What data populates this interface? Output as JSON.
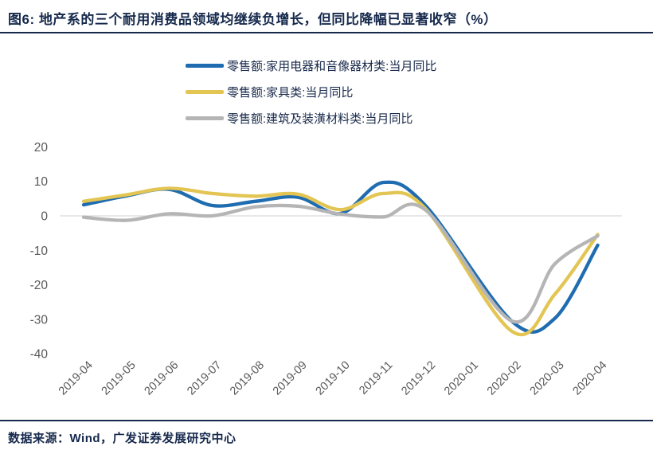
{
  "page": {
    "title": "图6:  地产系的三个耐用消费品领域均继续负增长，但同比降幅已显著收窄（%）",
    "footer": "数据来源：Wind，广发证券发展研究中心"
  },
  "colors": {
    "navy": "#16294C",
    "axis_label": "#595959",
    "gridline": "#D9D9D9"
  },
  "chart_data": {
    "type": "line",
    "smooth": true,
    "grid": "zero-line-only",
    "legend_position": "top-center",
    "categories": [
      "2019-04",
      "2019-05",
      "2019-06",
      "2019-07",
      "2019-08",
      "2019-09",
      "2019-10",
      "2019-11",
      "2019-12",
      "2020-01",
      "2020-02",
      "2020-03",
      "2020-04"
    ],
    "series": [
      {
        "name": "零售额:家用电器和音像器材类:当月同比",
        "color": "#1F6CB0",
        "values": [
          3.2,
          5.8,
          7.7,
          3.0,
          4.2,
          5.4,
          0.7,
          9.7,
          2.7,
          null,
          -30.6,
          -29.7,
          -8.5
        ]
      },
      {
        "name": "零售额:家具类:当月同比",
        "color": "#E3C553",
        "values": [
          4.2,
          6.1,
          8.0,
          6.5,
          5.7,
          6.3,
          1.8,
          6.5,
          1.8,
          null,
          -33.5,
          -22.7,
          -5.4
        ]
      },
      {
        "name": "零售额:建筑及装潢材料类:当月同比",
        "color": "#B5B5B5",
        "values": [
          -0.4,
          -1.3,
          0.6,
          0.0,
          2.6,
          2.8,
          0.5,
          -0.3,
          1.5,
          null,
          -30.5,
          -13.9,
          -5.8
        ]
      }
    ],
    "ylim": [
      -40,
      20
    ],
    "yticks": [
      20,
      10,
      0,
      -10,
      -20,
      -30,
      -40
    ],
    "xlabel_rotation": -45
  }
}
